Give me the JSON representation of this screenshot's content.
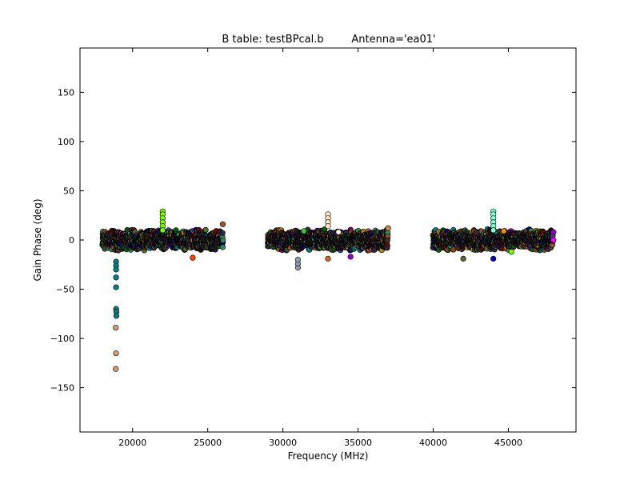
{
  "chart_data": {
    "type": "scatter",
    "title": "B table: testBPcal.b",
    "subtitle": "Antenna='ea01'",
    "xlabel": "Frequency (MHz)",
    "ylabel": "Gain Phase (deg)",
    "xlim": [
      16500,
      49500
    ],
    "ylim": [
      -195,
      195
    ],
    "xticks": [
      20000,
      25000,
      30000,
      35000,
      40000,
      45000
    ],
    "yticks": [
      -150,
      -100,
      -50,
      0,
      50,
      100,
      150
    ],
    "grid": false,
    "legend": "none",
    "marker": "circle",
    "band_segments": [
      {
        "start": 18000,
        "end": 26000,
        "center": 0,
        "spread": 8
      },
      {
        "start": 29000,
        "end": 37000,
        "center": 0,
        "spread": 8
      },
      {
        "start": 40000,
        "end": 48000,
        "center": 0,
        "spread": 8
      }
    ],
    "outlier_points": [
      {
        "x": 18900,
        "y": -22,
        "color": "#008080"
      },
      {
        "x": 18900,
        "y": -26,
        "color": "#008080"
      },
      {
        "x": 18900,
        "y": -30,
        "color": "#008080"
      },
      {
        "x": 18900,
        "y": -38,
        "color": "#008080"
      },
      {
        "x": 18900,
        "y": -48,
        "color": "#008080"
      },
      {
        "x": 18900,
        "y": -70,
        "color": "#008080"
      },
      {
        "x": 18920,
        "y": -73,
        "color": "#008080"
      },
      {
        "x": 18920,
        "y": -77,
        "color": "#008080"
      },
      {
        "x": 18880,
        "y": -89,
        "color": "#d2a070"
      },
      {
        "x": 18900,
        "y": -115,
        "color": "#d2a070"
      },
      {
        "x": 18880,
        "y": -131,
        "color": "#d2a070"
      },
      {
        "x": 22000,
        "y": 29,
        "color": "#7cfc00"
      },
      {
        "x": 22000,
        "y": 26,
        "color": "#7cfc00"
      },
      {
        "x": 22000,
        "y": 22,
        "color": "#7cfc00"
      },
      {
        "x": 22000,
        "y": 18,
        "color": "#7cfc00"
      },
      {
        "x": 22000,
        "y": 14,
        "color": "#7cfc00"
      },
      {
        "x": 22000,
        "y": 10,
        "color": "#7cfc00"
      },
      {
        "x": 33000,
        "y": 26,
        "color": "#ffe4c4"
      },
      {
        "x": 33000,
        "y": 22,
        "color": "#ffe4c4"
      },
      {
        "x": 33000,
        "y": 18,
        "color": "#ffe4c4"
      },
      {
        "x": 33000,
        "y": 14,
        "color": "#ffe4c4"
      },
      {
        "x": 33000,
        "y": -19,
        "color": "#d2691e"
      },
      {
        "x": 31000,
        "y": -28,
        "color": "#8fa0b0"
      },
      {
        "x": 31000,
        "y": -24,
        "color": "#8fa0b0"
      },
      {
        "x": 31000,
        "y": -20,
        "color": "#8fa0b0"
      },
      {
        "x": 44000,
        "y": 29,
        "color": "#7fffd4"
      },
      {
        "x": 44000,
        "y": 26,
        "color": "#7fffd4"
      },
      {
        "x": 44000,
        "y": 22,
        "color": "#7fffd4"
      },
      {
        "x": 44000,
        "y": 18,
        "color": "#7fffd4"
      },
      {
        "x": 44000,
        "y": 14,
        "color": "#7fffd4"
      },
      {
        "x": 44000,
        "y": 10,
        "color": "#7fffd4"
      },
      {
        "x": 44000,
        "y": -19,
        "color": "#0000cd"
      },
      {
        "x": 24000,
        "y": -18,
        "color": "#ff4500"
      },
      {
        "x": 34500,
        "y": -17,
        "color": "#9400d3"
      },
      {
        "x": 42000,
        "y": -19,
        "color": "#556b2f"
      },
      {
        "x": 48000,
        "y": 0,
        "color": "#ff00ff"
      },
      {
        "x": 48000,
        "y": 8,
        "color": "#9400d3"
      },
      {
        "x": 45200,
        "y": -12,
        "color": "#7cfc00"
      },
      {
        "x": 26000,
        "y": 16,
        "color": "#a0522d"
      },
      {
        "x": 37000,
        "y": 12,
        "color": "#cd853f"
      },
      {
        "x": 31400,
        "y": 9,
        "color": "#32cd32"
      },
      {
        "x": 33700,
        "y": 8,
        "color": "#ffffff"
      },
      {
        "x": 44700,
        "y": 9,
        "color": "#ff8c00"
      }
    ],
    "band_colors": [
      "#222222",
      "#2f4f2f",
      "#4b2e1e",
      "#1c2f4f",
      "#3a1f3f",
      "#556b2f",
      "#8b4513",
      "#2e8b57",
      "#483d8b",
      "#8b008b",
      "#b8860b",
      "#006400",
      "#000080",
      "#800000",
      "#008080",
      "#a0522d",
      "#333333",
      "#111111"
    ]
  }
}
